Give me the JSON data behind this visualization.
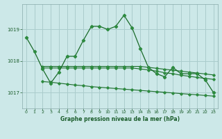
{
  "bg_color": "#cce8e8",
  "grid_color": "#aacccc",
  "line_color": "#1a6b2a",
  "marker_color": "#2d8b3f",
  "title": "Graphe pression niveau de la mer (hPa)",
  "title_color": "#1a5c2a",
  "xlim": [
    0,
    23
  ],
  "ylim": [
    1016.5,
    1019.8
  ],
  "yticks": [
    1017,
    1018,
    1019
  ],
  "xticks": [
    0,
    1,
    2,
    3,
    4,
    5,
    6,
    7,
    8,
    9,
    10,
    11,
    12,
    13,
    14,
    15,
    16,
    17,
    18,
    19,
    20,
    21,
    22,
    23
  ],
  "series_main": {
    "x": [
      0,
      1,
      2,
      3,
      4,
      5,
      6,
      7,
      8,
      9,
      10,
      11,
      12,
      13,
      14,
      15,
      16,
      17,
      18,
      19,
      20,
      21,
      22,
      23
    ],
    "y": [
      1018.75,
      1018.3,
      1017.75,
      1017.3,
      1017.65,
      1018.15,
      1018.15,
      1018.65,
      1019.1,
      1019.1,
      1019.0,
      1019.1,
      1019.45,
      1019.05,
      1018.4,
      1017.8,
      1017.6,
      1017.5,
      1017.8,
      1017.6,
      1017.6,
      1017.6,
      1017.4,
      1017.0
    ]
  },
  "series_upper": {
    "x": [
      2,
      3,
      4,
      5,
      6,
      7,
      8,
      9,
      10,
      11,
      12,
      13,
      14,
      15,
      16,
      17,
      18,
      19,
      20,
      21,
      22,
      23
    ],
    "y": [
      1017.83,
      1017.83,
      1017.83,
      1017.83,
      1017.83,
      1017.83,
      1017.83,
      1017.83,
      1017.83,
      1017.83,
      1017.83,
      1017.83,
      1017.83,
      1017.8,
      1017.77,
      1017.74,
      1017.71,
      1017.68,
      1017.65,
      1017.62,
      1017.59,
      1017.56
    ]
  },
  "series_mid": {
    "x": [
      2,
      3,
      4,
      5,
      6,
      7,
      8,
      9,
      10,
      11,
      12,
      13,
      14,
      15,
      16,
      17,
      18,
      19,
      20,
      21,
      22,
      23
    ],
    "y": [
      1017.78,
      1017.78,
      1017.78,
      1017.78,
      1017.78,
      1017.78,
      1017.78,
      1017.78,
      1017.78,
      1017.78,
      1017.78,
      1017.78,
      1017.75,
      1017.72,
      1017.68,
      1017.63,
      1017.6,
      1017.55,
      1017.52,
      1017.48,
      1017.45,
      1017.42
    ]
  },
  "series_lower": {
    "x": [
      2,
      3,
      4,
      5,
      6,
      7,
      8,
      9,
      10,
      11,
      12,
      13,
      14,
      15,
      16,
      17,
      18,
      19,
      20,
      21,
      22,
      23
    ],
    "y": [
      1017.35,
      1017.33,
      1017.3,
      1017.27,
      1017.24,
      1017.22,
      1017.19,
      1017.17,
      1017.15,
      1017.13,
      1017.11,
      1017.09,
      1017.07,
      1017.05,
      1017.03,
      1017.01,
      1016.99,
      1016.97,
      1016.95,
      1016.93,
      1016.91,
      1016.89
    ]
  }
}
